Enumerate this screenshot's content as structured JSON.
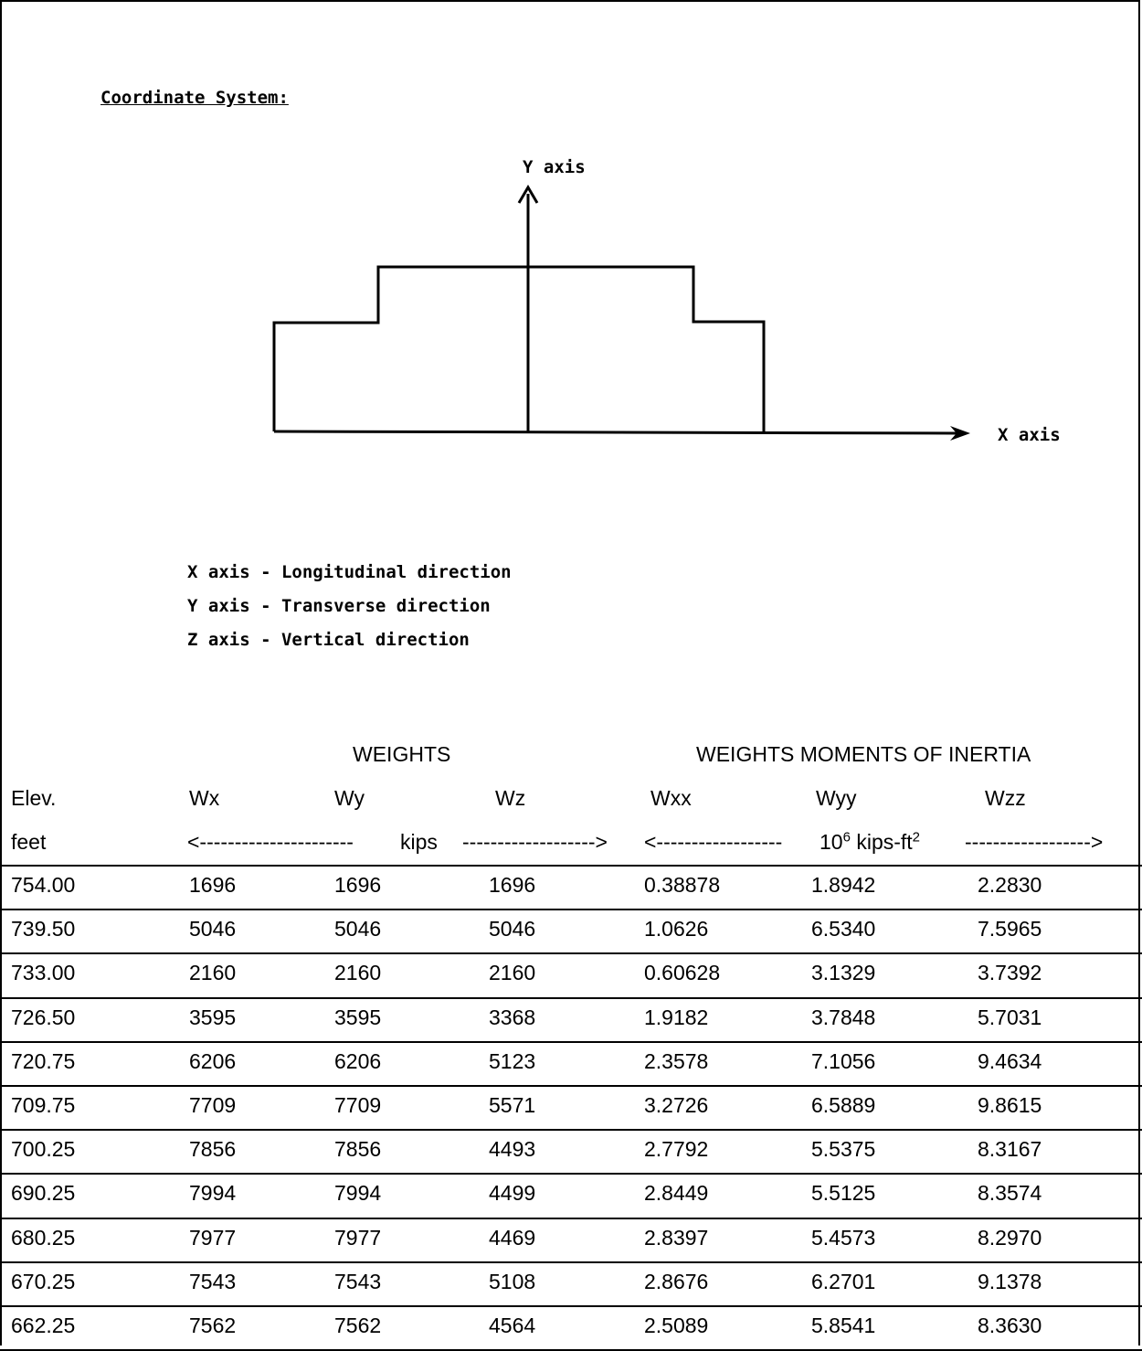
{
  "section_title": "Coordinate System:",
  "diagram": {
    "y_axis_label": "Y axis",
    "x_axis_label": "X axis"
  },
  "legend": [
    "X axis - Longitudinal direction",
    "Y axis - Transverse direction",
    "Z axis - Vertical direction"
  ],
  "table": {
    "group_weights": "WEIGHTS",
    "group_moments": "WEIGHTS MOMENTS OF INERTIA",
    "columns": [
      "Elev.",
      "Wx",
      "Wy",
      "Wz",
      "Wxx",
      "Wyy",
      "Wzz"
    ],
    "units": {
      "elev": "feet",
      "weights_left": "<----------------------",
      "weights_unit": "kips",
      "weights_right": "------------------->",
      "moments_left": "<------------------",
      "moments_base": "10",
      "moments_exp": "6",
      "moments_unit": " kips-ft",
      "moments_unit_exp": "2",
      "moments_right": "------------------>"
    },
    "rows": [
      [
        "754.00",
        "1696",
        "1696",
        "1696",
        "0.38878",
        "1.8942",
        "2.2830"
      ],
      [
        "739.50",
        "5046",
        "5046",
        "5046",
        "1.0626",
        "6.5340",
        "7.5965"
      ],
      [
        "733.00",
        "2160",
        "2160",
        "2160",
        "0.60628",
        "3.1329",
        "3.7392"
      ],
      [
        "726.50",
        "3595",
        "3595",
        "3368",
        "1.9182",
        "3.7848",
        "5.7031"
      ],
      [
        "720.75",
        "6206",
        "6206",
        "5123",
        "2.3578",
        "7.1056",
        "9.4634"
      ],
      [
        "709.75",
        "7709",
        "7709",
        "5571",
        "3.2726",
        "6.5889",
        "9.8615"
      ],
      [
        "700.25",
        "7856",
        "7856",
        "4493",
        "2.7792",
        "5.5375",
        "8.3167"
      ],
      [
        "690.25",
        "7994",
        "7994",
        "4499",
        "2.8449",
        "5.5125",
        "8.3574"
      ],
      [
        "680.25",
        "7977",
        "7977",
        "4469",
        "2.8397",
        "5.4573",
        "8.2970"
      ],
      [
        "670.25",
        "7543",
        "7543",
        "5108",
        "2.8676",
        "6.2701",
        "9.1378"
      ],
      [
        "662.25",
        "7562",
        "7562",
        "4564",
        "2.5089",
        "5.8541",
        "8.3630"
      ]
    ]
  }
}
